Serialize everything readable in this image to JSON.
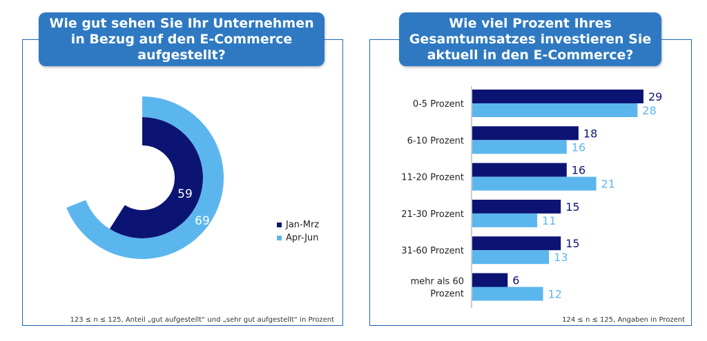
{
  "left_panel": {
    "title": "Wie gut sehen Sie Ihr Unternehmen\nin Bezug auf den E-Commerce\naufgestellt?",
    "footnote": "123 ≤ n ≤ 125, Anteil „gut aufgestellt“ und „sehr gut aufgestellt“ in Prozent"
  },
  "right_panel": {
    "title": "Wie viel Prozent Ihres\nGesamtumsatzes investieren Sie\naktuell in den E-Commerce?",
    "footnote": "124 ≤ n ≤ 125, Angaben in Prozent"
  },
  "colors": {
    "dark": "#0c1473",
    "light": "#5cb6ee",
    "title_bg": "#2e79c2",
    "border": "#1e63b4"
  },
  "chart_data": [
    {
      "type": "radial-bar",
      "max": 100,
      "series": [
        {
          "name": "Jan-Mrz",
          "value": 59,
          "label": "59"
        },
        {
          "name": "Apr-Jun",
          "value": 69,
          "label": "69"
        }
      ],
      "legend": [
        "Jan-Mrz",
        "Apr-Jun"
      ],
      "legend_position": "right"
    },
    {
      "type": "bar",
      "orientation": "horizontal",
      "categories": [
        "0-5 Prozent",
        "6-10 Prozent",
        "11-20 Prozent",
        "21-30 Prozent",
        "31-60 Prozent",
        "mehr als 60\nProzent"
      ],
      "series": [
        {
          "name": "Jan-Mrz",
          "values": [
            29,
            18,
            16,
            15,
            15,
            6
          ]
        },
        {
          "name": "Apr-Jun",
          "values": [
            28,
            16,
            21,
            11,
            13,
            12
          ]
        }
      ]
    }
  ]
}
